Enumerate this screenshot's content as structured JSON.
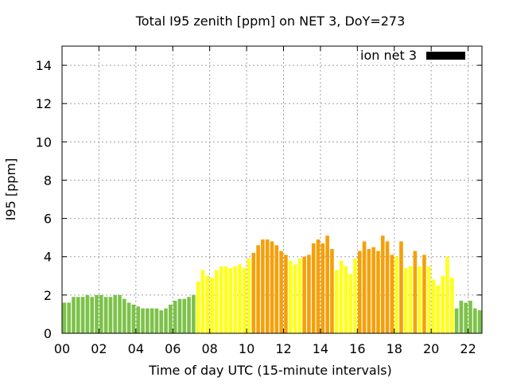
{
  "chart_data": {
    "type": "bar",
    "title": "Total I95 zenith [ppm] on NET 3, DoY=273",
    "xlabel": "Time of day UTC (15-minute intervals)",
    "ylabel": "I95 [ppm]",
    "xlim": [
      0,
      22.75
    ],
    "ylim": [
      0,
      15
    ],
    "xticks": [
      0,
      2,
      4,
      6,
      8,
      10,
      12,
      14,
      16,
      18,
      20,
      22
    ],
    "xtick_labels": [
      "00",
      "02",
      "04",
      "06",
      "08",
      "10",
      "12",
      "14",
      "16",
      "18",
      "20",
      "22"
    ],
    "yticks": [
      0,
      2,
      4,
      6,
      8,
      10,
      12,
      14
    ],
    "ytick_labels": [
      "0",
      "2",
      "4",
      "6",
      "8",
      "10",
      "12",
      "14"
    ],
    "grid": true,
    "legend": {
      "label": "ion net 3",
      "color": "#000000",
      "position": "top-right"
    },
    "interval_hours": 0.25,
    "colors": {
      "G": "#7dc24a",
      "Y": "#ffff1a",
      "O": "#f5a00a"
    },
    "values": [
      1.6,
      1.6,
      1.9,
      1.9,
      1.9,
      2.0,
      1.9,
      2.0,
      2.0,
      1.9,
      1.9,
      2.0,
      2.0,
      1.8,
      1.6,
      1.5,
      1.4,
      1.3,
      1.3,
      1.3,
      1.3,
      1.2,
      1.3,
      1.5,
      1.7,
      1.8,
      1.8,
      1.9,
      2.0,
      2.7,
      3.3,
      3.0,
      2.9,
      3.3,
      3.5,
      3.5,
      3.4,
      3.5,
      3.6,
      3.4,
      3.9,
      4.2,
      4.6,
      4.9,
      4.9,
      4.8,
      4.6,
      4.3,
      4.1,
      3.8,
      3.6,
      3.9,
      4.0,
      4.1,
      4.7,
      4.9,
      4.7,
      5.1,
      4.4,
      3.3,
      3.8,
      3.5,
      3.1,
      3.9,
      4.3,
      4.8,
      4.4,
      4.5,
      4.3,
      5.1,
      4.8,
      4.1,
      4.0,
      4.8,
      3.4,
      3.5,
      4.3,
      3.5,
      4.1,
      3.5,
      2.8,
      2.5,
      3.0,
      4.0,
      2.9,
      1.3,
      1.7,
      1.6,
      1.7,
      1.3,
      1.2
    ],
    "bar_colors": [
      "G",
      "G",
      "G",
      "G",
      "G",
      "G",
      "G",
      "G",
      "G",
      "G",
      "G",
      "G",
      "G",
      "G",
      "G",
      "G",
      "G",
      "G",
      "G",
      "G",
      "G",
      "G",
      "G",
      "G",
      "G",
      "G",
      "G",
      "G",
      "G",
      "Y",
      "Y",
      "Y",
      "Y",
      "Y",
      "Y",
      "Y",
      "Y",
      "Y",
      "Y",
      "Y",
      "Y",
      "O",
      "O",
      "O",
      "O",
      "O",
      "O",
      "O",
      "O",
      "Y",
      "Y",
      "Y",
      "O",
      "O",
      "O",
      "O",
      "O",
      "O",
      "O",
      "Y",
      "Y",
      "Y",
      "Y",
      "Y",
      "O",
      "O",
      "O",
      "O",
      "O",
      "O",
      "O",
      "O",
      "Y",
      "O",
      "Y",
      "Y",
      "O",
      "Y",
      "O",
      "Y",
      "Y",
      "Y",
      "Y",
      "Y",
      "Y",
      "G",
      "G",
      "G",
      "G",
      "G",
      "G"
    ]
  }
}
